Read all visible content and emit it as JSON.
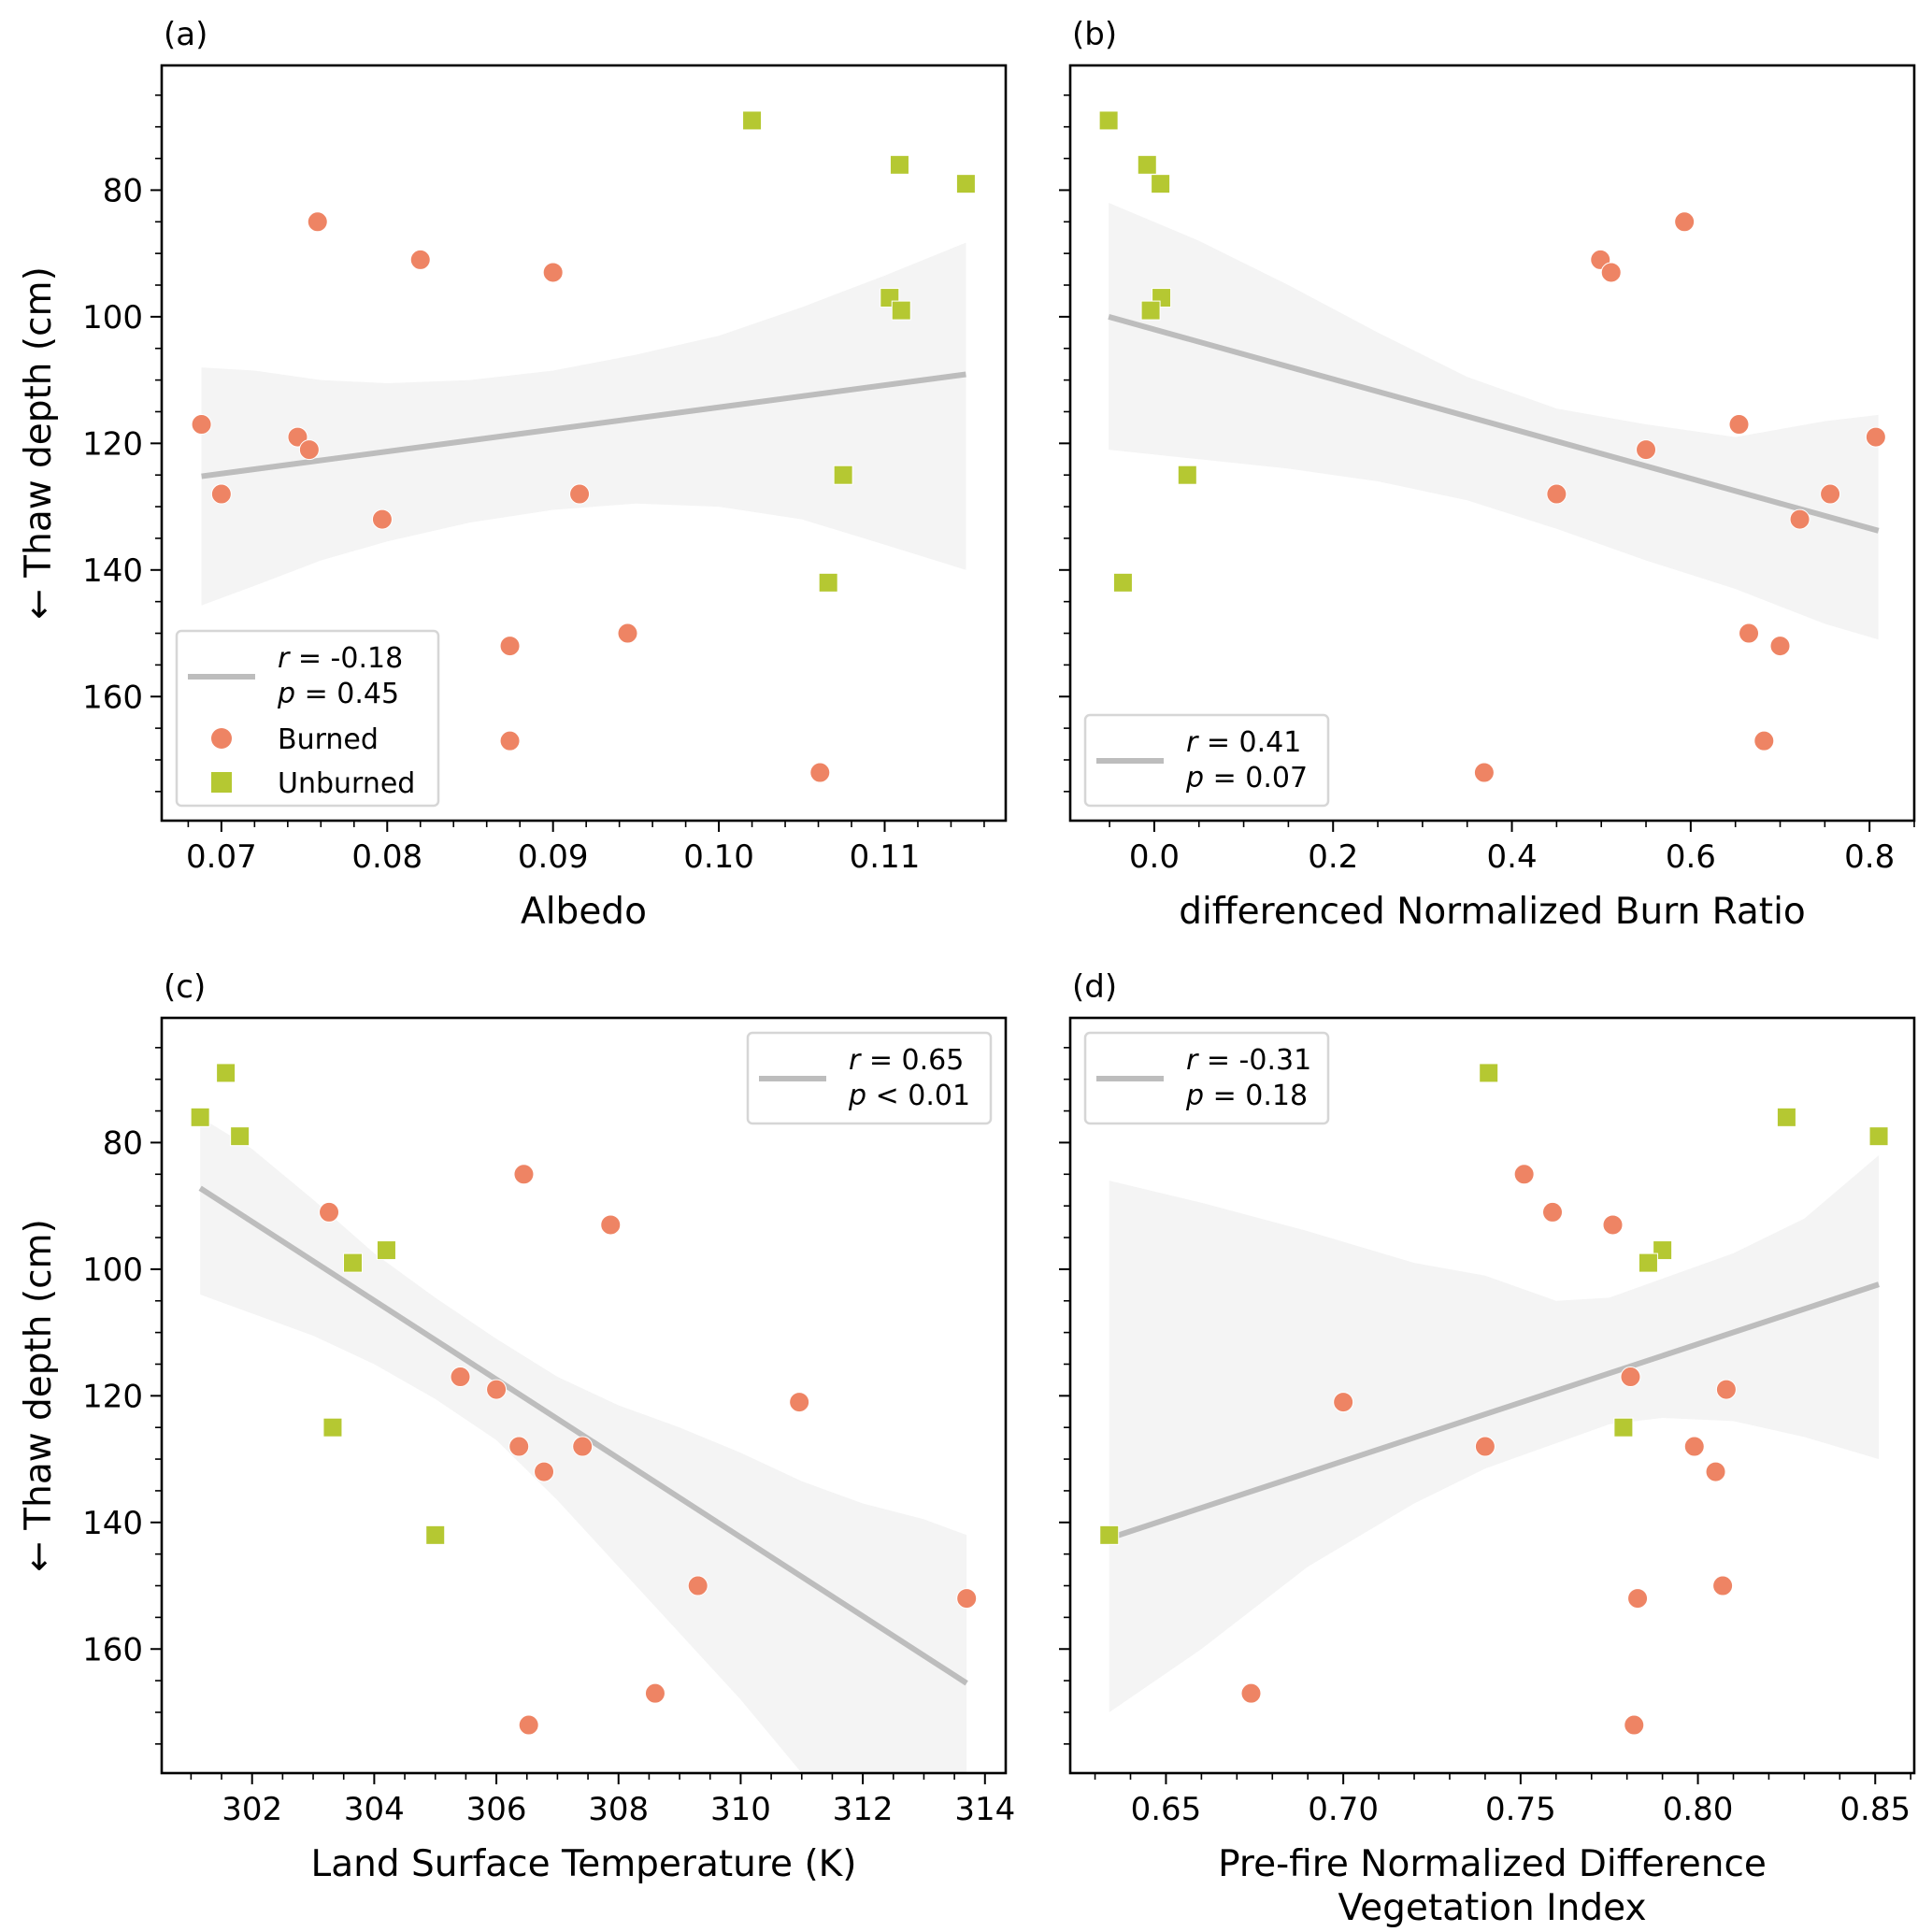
{
  "figure": {
    "colors": {
      "burned": "#ee8464",
      "unburned": "#b5c832",
      "regression_line": "#bdbdbd",
      "confidence_band": "#f4f4f4",
      "legend_border": "#d6d6d6"
    }
  },
  "chart_data": [
    {
      "panel": "(a)",
      "type": "scatter",
      "title": "",
      "xlabel": "Albedo",
      "ylabel": "← Thaw depth (cm)",
      "xlim": [
        0.0664,
        0.1173
      ],
      "ylim": [
        179.6,
        60.3
      ],
      "y_inverted": true,
      "xticks": [
        0.07,
        0.08,
        0.09,
        0.1,
        0.11
      ],
      "xtick_labels": [
        "0.07",
        "0.08",
        "0.09",
        "0.10",
        "0.11"
      ],
      "x_minor_step": 0.002,
      "yticks": [
        80,
        100,
        120,
        140,
        160
      ],
      "ytick_labels": [
        "80",
        "100",
        "120",
        "140",
        "160"
      ],
      "y_minor_step": 5,
      "show_ylabel": true,
      "grid": false,
      "legend": {
        "placement": "lower-left",
        "stat_r": "r = -0.18",
        "stat_p": "p = 0.45",
        "stat_r_var": "r",
        "stat_r_rest": " = -0.18",
        "stat_p_var": "p",
        "stat_p_rest": " = 0.45",
        "burned_label": "Burned",
        "unburned_label": "Unburned",
        "show_groups": true
      },
      "regression": {
        "x": [
          0.0688,
          0.1149
        ],
        "y": [
          125.2,
          109.1
        ]
      },
      "confidence_band": {
        "x": [
          0.0688,
          0.072,
          0.076,
          0.08,
          0.085,
          0.09,
          0.095,
          0.1,
          0.105,
          0.11,
          0.1149
        ],
        "upper": [
          108.0,
          108.5,
          110.0,
          110.5,
          110.0,
          108.5,
          106.0,
          103.0,
          98.5,
          93.5,
          88.3
        ],
        "lower": [
          145.6,
          142.5,
          138.5,
          135.5,
          132.5,
          130.5,
          129.5,
          130.0,
          132.0,
          136.0,
          140.0
        ]
      },
      "series": [
        {
          "name": "Burned",
          "marker": "circle",
          "x": [
            0.0688,
            0.07,
            0.0746,
            0.0753,
            0.0758,
            0.0797,
            0.082,
            0.0874,
            0.0874,
            0.09,
            0.0916,
            0.0945,
            0.1061
          ],
          "y": [
            117,
            128,
            119,
            121,
            85,
            132,
            91,
            152,
            167,
            93,
            128,
            150,
            172
          ]
        },
        {
          "name": "Unburned",
          "marker": "square",
          "x": [
            0.102,
            0.1109,
            0.1149,
            0.1103,
            0.111,
            0.1075,
            0.1066
          ],
          "y": [
            69,
            76,
            79,
            97,
            99,
            125,
            142
          ]
        }
      ]
    },
    {
      "panel": "(b)",
      "type": "scatter",
      "title": "",
      "xlabel": "differenced Normalized Burn Ratio",
      "ylabel": "",
      "xlim": [
        -0.094,
        0.85
      ],
      "ylim": [
        179.6,
        60.3
      ],
      "y_inverted": true,
      "xticks": [
        0.0,
        0.2,
        0.4,
        0.6,
        0.8
      ],
      "xtick_labels": [
        "0.0",
        "0.2",
        "0.4",
        "0.6",
        "0.8"
      ],
      "x_minor_step": 0.05,
      "yticks": [
        80,
        100,
        120,
        140,
        160
      ],
      "ytick_labels": [],
      "y_minor_step": 5,
      "show_ylabel": false,
      "grid": false,
      "legend": {
        "placement": "lower-left",
        "stat_r": "r = 0.41",
        "stat_p": "p = 0.07",
        "stat_r_var": "r",
        "stat_r_rest": " = 0.41",
        "stat_p_var": "p",
        "stat_p_rest": " = 0.07",
        "show_groups": false
      },
      "regression": {
        "x": [
          -0.051,
          0.81
        ],
        "y": [
          100.0,
          133.8
        ]
      },
      "confidence_band": {
        "x": [
          -0.051,
          0.05,
          0.15,
          0.25,
          0.35,
          0.45,
          0.55,
          0.65,
          0.75,
          0.81
        ],
        "upper": [
          82.0,
          88.0,
          95.0,
          102.5,
          109.5,
          114.5,
          117.0,
          119.0,
          116.5,
          115.5
        ],
        "lower": [
          121.0,
          122.5,
          124.0,
          126.0,
          129.0,
          133.5,
          138.5,
          143.0,
          148.5,
          151.0
        ]
      },
      "series": [
        {
          "name": "Burned",
          "marker": "circle",
          "x": [
            0.593,
            0.499,
            0.511,
            0.654,
            0.807,
            0.55,
            0.45,
            0.756,
            0.722,
            0.665,
            0.7,
            0.682,
            0.369
          ],
          "y": [
            85,
            91,
            93,
            117,
            119,
            121,
            128,
            128,
            132,
            150,
            152,
            167,
            172
          ]
        },
        {
          "name": "Unburned",
          "marker": "square",
          "x": [
            -0.051,
            -0.008,
            0.007,
            0.008,
            -0.004,
            0.037,
            -0.035
          ],
          "y": [
            69,
            76,
            79,
            97,
            99,
            125,
            142
          ]
        }
      ]
    },
    {
      "panel": "(c)",
      "type": "scatter",
      "title": "",
      "xlabel": "Land Surface Temperature (K)",
      "ylabel": "← Thaw depth (cm)",
      "xlim": [
        300.52,
        314.34
      ],
      "ylim": [
        179.6,
        60.3
      ],
      "y_inverted": true,
      "xticks": [
        302,
        304,
        306,
        308,
        310,
        312,
        314
      ],
      "xtick_labels": [
        "302",
        "304",
        "306",
        "308",
        "310",
        "312",
        "314"
      ],
      "x_minor_step": 0.5,
      "yticks": [
        80,
        100,
        120,
        140,
        160
      ],
      "ytick_labels": [
        "80",
        "100",
        "120",
        "140",
        "160"
      ],
      "y_minor_step": 5,
      "show_ylabel": true,
      "grid": false,
      "legend": {
        "placement": "top-right",
        "stat_r": "r = 0.65",
        "stat_p": "p < 0.01",
        "stat_r_var": "r",
        "stat_r_rest": " = 0.65",
        "stat_p_var": "p",
        "stat_p_rest": " < 0.01",
        "show_groups": false
      },
      "regression": {
        "x": [
          301.15,
          313.7
        ],
        "y": [
          87.2,
          165.4
        ]
      },
      "confidence_band": {
        "x": [
          301.15,
          302.0,
          303.0,
          304.0,
          305.0,
          306.0,
          307.0,
          308.0,
          309.0,
          310.0,
          311.0,
          312.0,
          313.0,
          313.7
        ],
        "upper": [
          76.0,
          81.0,
          89.0,
          97.5,
          104.5,
          111.0,
          117.0,
          121.5,
          125.0,
          129.0,
          133.5,
          137.0,
          139.5,
          142.0
        ],
        "lower": [
          104.0,
          107.0,
          110.5,
          115.0,
          120.5,
          127.0,
          136.5,
          147.0,
          157.5,
          168.0,
          179.6,
          179.6,
          179.6,
          179.6
        ]
      },
      "series": [
        {
          "name": "Burned",
          "marker": "circle",
          "x": [
            303.26,
            306.45,
            307.87,
            305.41,
            306.0,
            306.37,
            307.41,
            306.78,
            310.96,
            309.3,
            313.7,
            308.6,
            306.53
          ],
          "y": [
            91,
            85,
            93,
            117,
            119,
            128,
            128,
            132,
            121,
            150,
            152,
            167,
            172
          ]
        },
        {
          "name": "Unburned",
          "marker": "square",
          "x": [
            301.15,
            301.57,
            301.8,
            303.65,
            304.2,
            303.32,
            305.0
          ],
          "y": [
            76,
            69,
            79,
            99,
            97,
            125,
            142
          ]
        }
      ]
    },
    {
      "panel": "(d)",
      "type": "scatter",
      "title": "",
      "xlabel": "Pre-fire Normalized Difference Vegetation Index",
      "xlabel_lines": [
        "Pre-fire Normalized Difference",
        "Vegetation Index"
      ],
      "ylabel": "",
      "xlim": [
        0.623,
        0.861
      ],
      "ylim": [
        179.6,
        60.3
      ],
      "y_inverted": true,
      "xticks": [
        0.65,
        0.7,
        0.75,
        0.8,
        0.85
      ],
      "xtick_labels": [
        "0.65",
        "0.70",
        "0.75",
        "0.80",
        "0.85"
      ],
      "x_minor_step": 0.01,
      "yticks": [
        80,
        100,
        120,
        140,
        160
      ],
      "ytick_labels": [],
      "y_minor_step": 5,
      "show_ylabel": false,
      "grid": false,
      "legend": {
        "placement": "top-left",
        "stat_r": "r = -0.31",
        "stat_p": "p = 0.18",
        "stat_r_var": "r",
        "stat_r_rest": " = -0.31",
        "stat_p_var": "p",
        "stat_p_rest": " = 0.18",
        "show_groups": false
      },
      "regression": {
        "x": [
          0.634,
          0.851
        ],
        "y": [
          142.5,
          102.4
        ]
      },
      "confidence_band": {
        "x": [
          0.634,
          0.66,
          0.69,
          0.72,
          0.74,
          0.76,
          0.775,
          0.79,
          0.81,
          0.83,
          0.851
        ],
        "upper": [
          86.0,
          89.5,
          94.0,
          99.0,
          101.0,
          105.0,
          104.5,
          101.5,
          97.5,
          92.0,
          82.0
        ],
        "lower": [
          170.0,
          160.0,
          147.0,
          137.0,
          131.5,
          127.5,
          124.5,
          123.5,
          124.0,
          126.5,
          130.0
        ]
      },
      "series": [
        {
          "name": "Burned",
          "marker": "circle",
          "x": [
            0.751,
            0.759,
            0.776,
            0.781,
            0.808,
            0.7,
            0.74,
            0.799,
            0.805,
            0.807,
            0.783,
            0.674,
            0.782
          ],
          "y": [
            85,
            91,
            93,
            117,
            119,
            121,
            128,
            128,
            132,
            150,
            152,
            167,
            172
          ]
        },
        {
          "name": "Unburned",
          "marker": "square",
          "x": [
            0.741,
            0.825,
            0.851,
            0.79,
            0.786,
            0.779,
            0.634
          ],
          "y": [
            69,
            76,
            79,
            97,
            99,
            125,
            142
          ]
        }
      ]
    }
  ]
}
